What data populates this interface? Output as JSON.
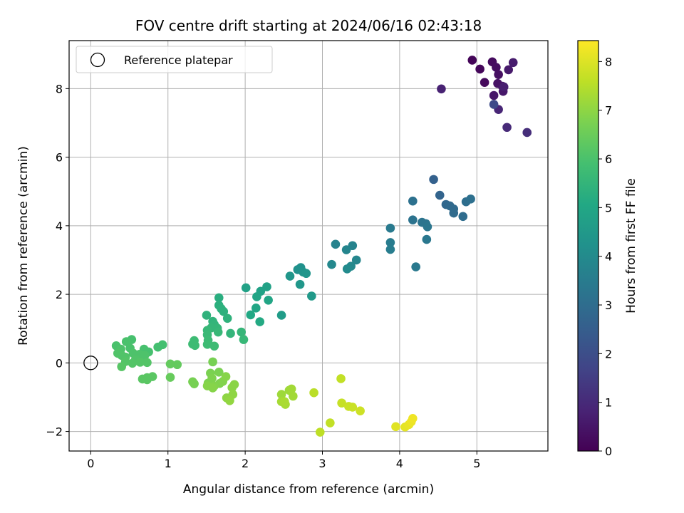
{
  "chart_data": {
    "type": "scatter",
    "title": "FOV centre drift starting at 2024/06/16 02:43:18",
    "xlabel": "Angular distance from reference (arcmin)",
    "ylabel": "Rotation from reference (arcmin)",
    "xlim": [
      -0.28,
      5.92
    ],
    "ylim": [
      -2.57,
      9.4
    ],
    "xticks": [
      0,
      1,
      2,
      3,
      4,
      5
    ],
    "yticks": [
      -2,
      0,
      2,
      4,
      6,
      8
    ],
    "grid": true,
    "legend": {
      "placement": "top-left",
      "entries": [
        "Reference platepar"
      ]
    },
    "reference_point": {
      "x": 0,
      "y": 0
    },
    "colormap": "viridis",
    "colorbar": {
      "label": "Hours from first FF file",
      "range": [
        0,
        8.43
      ],
      "ticks": [
        0,
        1,
        2,
        3,
        4,
        5,
        6,
        7,
        8
      ]
    },
    "point_color_key": "hours_from_first_ff_file",
    "points": [
      [
        4.94,
        8.83,
        0.1
      ],
      [
        5.04,
        8.57,
        0.15
      ],
      [
        5.1,
        8.18,
        0.2
      ],
      [
        5.2,
        8.78,
        0.25
      ],
      [
        5.25,
        8.62,
        0.3
      ],
      [
        5.28,
        8.41,
        0.35
      ],
      [
        5.27,
        8.15,
        0.4
      ],
      [
        5.33,
        8.07,
        0.45
      ],
      [
        5.22,
        7.8,
        0.5
      ],
      [
        5.34,
        7.92,
        0.55
      ],
      [
        5.41,
        8.55,
        0.6
      ],
      [
        5.47,
        8.76,
        0.65
      ],
      [
        5.35,
        8.05,
        0.7
      ],
      [
        4.54,
        7.99,
        0.8
      ],
      [
        5.28,
        7.39,
        0.9
      ],
      [
        5.39,
        6.87,
        1.0
      ],
      [
        5.65,
        6.72,
        1.1
      ],
      [
        5.22,
        7.54,
        1.9
      ],
      [
        4.44,
        5.35,
        2.6
      ],
      [
        4.52,
        4.89,
        2.7
      ],
      [
        4.6,
        4.62,
        2.8
      ],
      [
        4.65,
        4.58,
        2.85
      ],
      [
        4.7,
        4.49,
        2.9
      ],
      [
        4.7,
        4.37,
        2.95
      ],
      [
        4.82,
        4.27,
        3.0
      ],
      [
        4.86,
        4.7,
        3.05
      ],
      [
        4.92,
        4.78,
        3.1
      ],
      [
        4.17,
        4.72,
        3.15
      ],
      [
        4.17,
        4.17,
        3.2
      ],
      [
        4.29,
        4.1,
        3.25
      ],
      [
        4.34,
        4.06,
        3.25
      ],
      [
        4.36,
        3.97,
        3.3
      ],
      [
        4.35,
        3.6,
        3.35
      ],
      [
        4.21,
        2.8,
        3.4
      ],
      [
        3.88,
        3.93,
        3.45
      ],
      [
        3.88,
        3.51,
        3.5
      ],
      [
        3.88,
        3.31,
        3.55
      ],
      [
        3.17,
        3.46,
        3.7
      ],
      [
        3.39,
        3.42,
        3.75
      ],
      [
        3.31,
        3.3,
        3.8
      ],
      [
        3.44,
        3.0,
        3.85
      ],
      [
        3.12,
        2.87,
        3.9
      ],
      [
        3.37,
        2.82,
        3.95
      ],
      [
        3.32,
        2.74,
        4.0
      ],
      [
        2.72,
        2.78,
        4.2
      ],
      [
        2.68,
        2.72,
        4.25
      ],
      [
        2.75,
        2.65,
        4.3
      ],
      [
        2.79,
        2.61,
        4.35
      ],
      [
        2.58,
        2.53,
        4.4
      ],
      [
        2.71,
        2.29,
        4.45
      ],
      [
        2.86,
        1.95,
        4.5
      ],
      [
        2.47,
        1.39,
        4.6
      ],
      [
        2.01,
        2.19,
        4.8
      ],
      [
        2.28,
        2.22,
        4.8
      ],
      [
        2.2,
        2.09,
        4.85
      ],
      [
        2.15,
        1.93,
        4.9
      ],
      [
        2.3,
        1.83,
        4.95
      ],
      [
        2.14,
        1.6,
        5.0
      ],
      [
        2.07,
        1.4,
        5.05
      ],
      [
        2.19,
        1.2,
        5.1
      ],
      [
        1.66,
        1.9,
        5.25
      ],
      [
        1.66,
        1.68,
        5.3
      ],
      [
        1.69,
        1.58,
        5.35
      ],
      [
        1.72,
        1.5,
        5.35
      ],
      [
        1.5,
        1.39,
        5.4
      ],
      [
        1.58,
        1.21,
        5.45
      ],
      [
        1.6,
        1.12,
        5.5
      ],
      [
        1.56,
        1.02,
        5.55
      ],
      [
        1.64,
        1.01,
        5.55
      ],
      [
        1.51,
        0.95,
        5.6
      ],
      [
        1.65,
        0.9,
        5.6
      ],
      [
        1.51,
        0.82,
        5.65
      ],
      [
        1.52,
        0.66,
        5.7
      ],
      [
        1.34,
        0.65,
        5.75
      ],
      [
        1.81,
        0.86,
        5.5
      ],
      [
        1.77,
        1.3,
        5.4
      ],
      [
        1.95,
        0.9,
        5.55
      ],
      [
        1.98,
        0.68,
        5.6
      ],
      [
        1.51,
        0.54,
        5.75
      ],
      [
        1.6,
        0.49,
        5.75
      ],
      [
        1.35,
        0.51,
        5.75
      ],
      [
        1.32,
        0.55,
        5.75
      ],
      [
        0.93,
        0.53,
        5.9
      ],
      [
        0.87,
        0.46,
        5.9
      ],
      [
        0.69,
        0.4,
        5.95
      ],
      [
        0.75,
        0.32,
        5.95
      ],
      [
        0.53,
        0.68,
        5.95
      ],
      [
        0.46,
        0.62,
        6.0
      ],
      [
        0.51,
        0.43,
        6.0
      ],
      [
        0.55,
        0.28,
        6.05
      ],
      [
        0.63,
        0.25,
        6.05
      ],
      [
        0.7,
        0.22,
        6.05
      ],
      [
        0.33,
        0.5,
        6.0
      ],
      [
        0.39,
        0.4,
        6.05
      ],
      [
        0.35,
        0.28,
        6.1
      ],
      [
        0.4,
        0.22,
        6.1
      ],
      [
        0.45,
        0.17,
        6.1
      ],
      [
        0.58,
        0.1,
        6.1
      ],
      [
        0.64,
        0.02,
        6.15
      ],
      [
        0.73,
        0.01,
        6.15
      ],
      [
        0.45,
        0.04,
        6.15
      ],
      [
        0.54,
        -0.01,
        6.15
      ],
      [
        0.4,
        -0.11,
        6.2
      ],
      [
        0.67,
        -0.47,
        6.25
      ],
      [
        0.73,
        -0.43,
        6.25
      ],
      [
        0.8,
        -0.4,
        6.25
      ],
      [
        0.73,
        -0.49,
        6.25
      ],
      [
        1.03,
        -0.03,
        6.4
      ],
      [
        1.12,
        -0.05,
        6.4
      ],
      [
        1.03,
        -0.42,
        6.45
      ],
      [
        1.32,
        -0.55,
        6.7
      ],
      [
        1.34,
        -0.61,
        6.7
      ],
      [
        1.58,
        0.03,
        6.7
      ],
      [
        1.55,
        -0.3,
        6.75
      ],
      [
        1.66,
        -0.27,
        6.75
      ],
      [
        1.57,
        -0.45,
        6.8
      ],
      [
        1.52,
        -0.59,
        6.8
      ],
      [
        1.67,
        -0.6,
        6.8
      ],
      [
        1.71,
        -0.54,
        6.85
      ],
      [
        1.6,
        -0.67,
        6.85
      ],
      [
        1.51,
        -0.67,
        6.9
      ],
      [
        1.58,
        -0.73,
        6.9
      ],
      [
        1.75,
        -0.4,
        6.9
      ],
      [
        1.86,
        -0.63,
        6.95
      ],
      [
        1.83,
        -0.72,
        6.95
      ],
      [
        1.84,
        -0.92,
        7.0
      ],
      [
        1.76,
        -1.02,
        7.0
      ],
      [
        1.8,
        -1.1,
        7.05
      ],
      [
        2.47,
        -0.92,
        7.2
      ],
      [
        2.57,
        -0.8,
        7.2
      ],
      [
        2.6,
        -0.76,
        7.25
      ],
      [
        2.62,
        -0.97,
        7.25
      ],
      [
        2.47,
        -1.13,
        7.3
      ],
      [
        2.52,
        -1.21,
        7.3
      ],
      [
        2.51,
        -1.13,
        7.35
      ],
      [
        2.89,
        -0.87,
        7.55
      ],
      [
        2.97,
        -2.02,
        7.6
      ],
      [
        3.1,
        -1.75,
        7.65
      ],
      [
        3.24,
        -0.46,
        7.65
      ],
      [
        3.25,
        -1.17,
        7.7
      ],
      [
        3.34,
        -1.27,
        7.75
      ],
      [
        3.39,
        -1.29,
        7.75
      ],
      [
        3.49,
        -1.4,
        7.8
      ],
      [
        3.95,
        -1.86,
        8.05
      ],
      [
        4.07,
        -1.87,
        8.1
      ],
      [
        4.12,
        -1.8,
        8.15
      ],
      [
        4.15,
        -1.72,
        8.2
      ],
      [
        4.17,
        -1.62,
        8.25
      ]
    ]
  }
}
